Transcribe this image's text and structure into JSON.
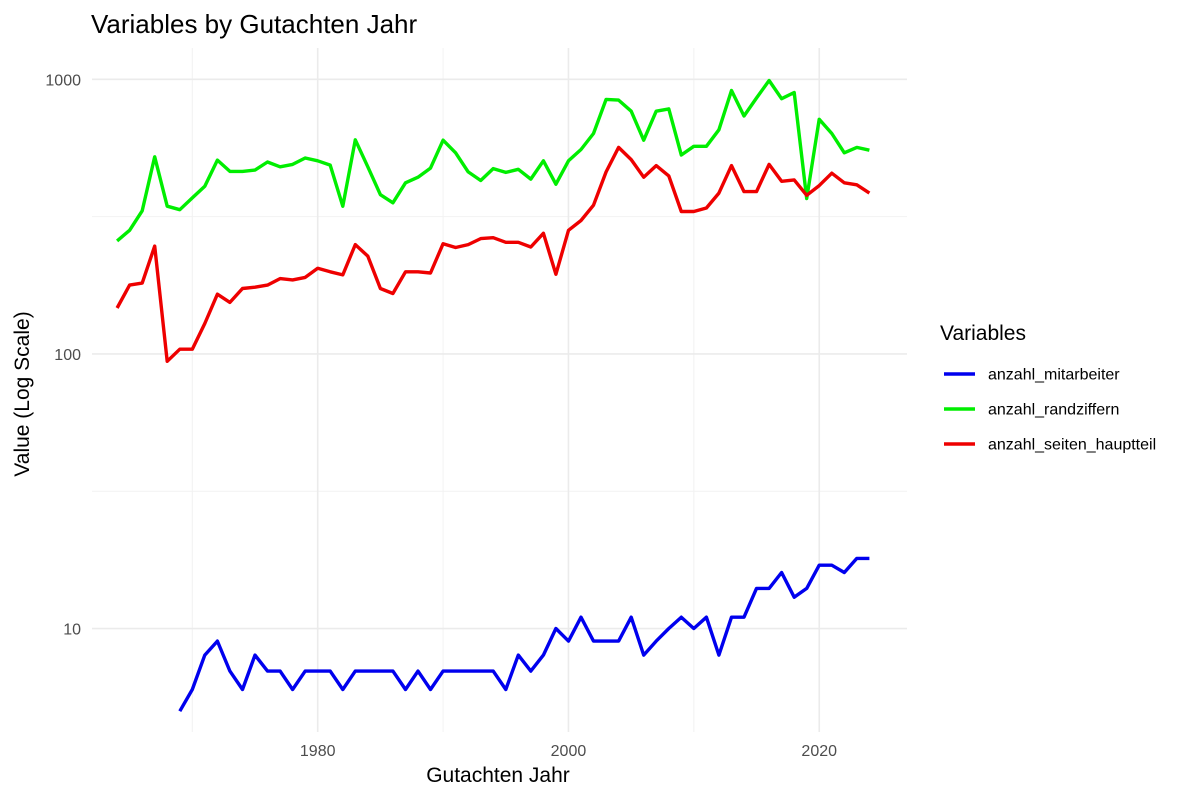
{
  "chart_data": {
    "type": "line",
    "title": "Variables by Gutachten Jahr",
    "xlabel": "Gutachten Jahr",
    "ylabel": "Value (Log Scale)",
    "y_scale": "log10",
    "xlim": [
      1962,
      2027
    ],
    "ylim": [
      4.2,
      1300
    ],
    "x_ticks": [
      1980,
      2000,
      2020
    ],
    "y_ticks": [
      10,
      100,
      1000
    ],
    "grid": true,
    "legend": {
      "title": "Variables",
      "position": "right"
    },
    "series": [
      {
        "name": "anzahl_mitarbeiter",
        "color": "#0000ee",
        "x": [
          1969,
          1970,
          1971,
          1972,
          1973,
          1974,
          1975,
          1976,
          1977,
          1978,
          1979,
          1980,
          1981,
          1982,
          1983,
          1984,
          1985,
          1986,
          1987,
          1988,
          1989,
          1990,
          1991,
          1992,
          1993,
          1994,
          1995,
          1996,
          1997,
          1998,
          1999,
          2000,
          2001,
          2002,
          2003,
          2004,
          2005,
          2006,
          2007,
          2008,
          2009,
          2010,
          2011,
          2012,
          2013,
          2014,
          2015,
          2016,
          2017,
          2018,
          2019,
          2020,
          2021,
          2022,
          2023,
          2024
        ],
        "values": [
          5,
          6,
          8,
          9,
          7,
          6,
          8,
          7,
          7,
          6,
          7,
          7,
          7,
          6,
          7,
          7,
          7,
          7,
          6,
          7,
          6,
          7,
          7,
          7,
          7,
          7,
          6,
          8,
          7,
          8,
          10,
          9,
          11,
          9,
          9,
          9,
          11,
          8,
          9,
          10,
          11,
          10,
          11,
          8,
          11,
          11,
          14,
          14,
          16,
          13,
          14,
          17,
          17,
          16,
          18,
          18
        ]
      },
      {
        "name": "anzahl_randziffern",
        "color": "#00ee00",
        "x": [
          1964,
          1965,
          1966,
          1967,
          1968,
          1969,
          1970,
          1971,
          1972,
          1973,
          1974,
          1975,
          1976,
          1977,
          1978,
          1979,
          1980,
          1981,
          1982,
          1983,
          1984,
          1985,
          1986,
          1987,
          1988,
          1989,
          1990,
          1991,
          1992,
          1993,
          1994,
          1995,
          1996,
          1997,
          1998,
          1999,
          2000,
          2001,
          2002,
          2003,
          2004,
          2005,
          2006,
          2007,
          2008,
          2009,
          2010,
          2011,
          2012,
          2013,
          2014,
          2015,
          2016,
          2017,
          2018,
          2019,
          2020,
          2021,
          2022,
          2023,
          2024
        ],
        "values": [
          258,
          282,
          332,
          522,
          345,
          335,
          370,
          408,
          508,
          462,
          462,
          467,
          500,
          480,
          490,
          517,
          505,
          487,
          345,
          602,
          480,
          380,
          355,
          420,
          440,
          475,
          600,
          540,
          460,
          428,
          473,
          458,
          470,
          433,
          505,
          415,
          505,
          555,
          635,
          845,
          840,
          765,
          600,
          765,
          780,
          530,
          570,
          570,
          655,
          910,
          735,
          855,
          990,
          850,
          895,
          368,
          715,
          635,
          540,
          565,
          552
        ]
      },
      {
        "name": "anzahl_seiten_hauptteil",
        "color": "#ee0000",
        "x": [
          1964,
          1965,
          1966,
          1967,
          1968,
          1969,
          1970,
          1971,
          1972,
          1973,
          1974,
          1975,
          1976,
          1977,
          1978,
          1979,
          1980,
          1981,
          1982,
          1983,
          1984,
          1985,
          1986,
          1987,
          1988,
          1989,
          1990,
          1991,
          1992,
          1993,
          1994,
          1995,
          1996,
          1997,
          1998,
          1999,
          2000,
          2001,
          2002,
          2003,
          2004,
          2005,
          2006,
          2007,
          2008,
          2009,
          2010,
          2011,
          2012,
          2013,
          2014,
          2015,
          2016,
          2017,
          2018,
          2019,
          2020,
          2021,
          2022,
          2023,
          2024
        ],
        "values": [
          147,
          178,
          181,
          247,
          94,
          104,
          104,
          129,
          165,
          154,
          173,
          175,
          178,
          188,
          186,
          190,
          205,
          199,
          194,
          250,
          227,
          173,
          166,
          199,
          199,
          197,
          252,
          244,
          250,
          263,
          265,
          255,
          255,
          245,
          275,
          195,
          282,
          306,
          348,
          460,
          565,
          510,
          440,
          485,
          445,
          330,
          330,
          340,
          385,
          485,
          390,
          390,
          490,
          425,
          430,
          378,
          410,
          455,
          420,
          413,
          385
        ]
      }
    ]
  }
}
